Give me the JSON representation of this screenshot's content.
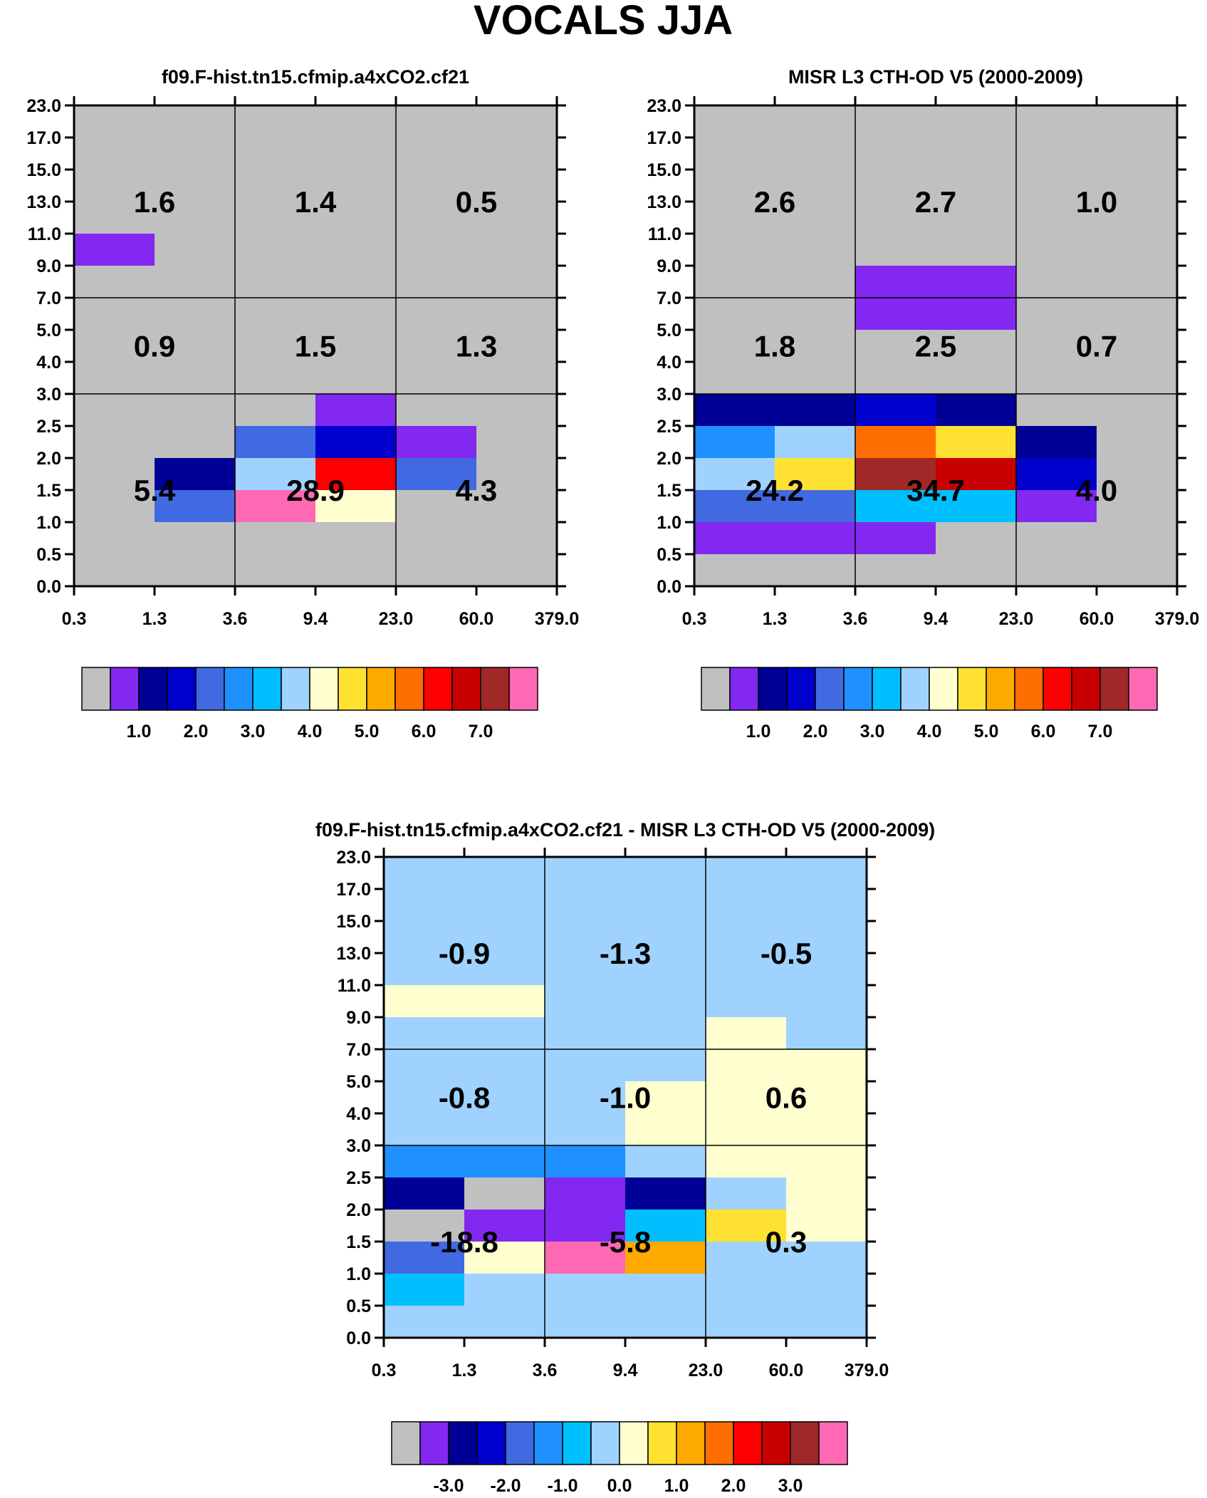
{
  "figure": {
    "title": "VOCALS JJA"
  },
  "palette": {
    "colors": [
      "#c0c0c0",
      "#8228f0",
      "#000096",
      "#0000cd",
      "#4169e1",
      "#1e90ff",
      "#00bfff",
      "#a0d2ff",
      "#ffffd0",
      "#ffe132",
      "#ffaa00",
      "#ff6e00",
      "#ff0000",
      "#c80000",
      "#a02828",
      "#ff69b4"
    ],
    "ratio_labels": [
      "1.0",
      "2.0",
      "3.0",
      "4.0",
      "5.0",
      "6.0",
      "7.0"
    ],
    "diff_labels": [
      "-3.0",
      "-2.0",
      "-1.0",
      "0.0",
      "1.0",
      "2.0",
      "3.0"
    ]
  },
  "chart_data": [
    {
      "type": "heatmap",
      "id": "model",
      "title": "f09.F-hist.tn15.cfmip.a4xCO2.cf21",
      "x_ticks": [
        "0.3",
        "1.3",
        "3.6",
        "9.4",
        "23.0",
        "60.0",
        "379.0"
      ],
      "y_ticks": [
        "0.0",
        "0.5",
        "1.0",
        "1.5",
        "2.0",
        "2.5",
        "3.0",
        "4.0",
        "5.0",
        "7.0",
        "9.0",
        "11.0",
        "13.0",
        "15.0",
        "17.0",
        "23.0"
      ],
      "colorbar": "ratio",
      "default_color_index": 0,
      "cells": [
        {
          "r": 10,
          "c": 0,
          "k": 1
        },
        {
          "r": 5,
          "c": 3,
          "k": 1
        },
        {
          "r": 4,
          "c": 2,
          "k": 4
        },
        {
          "r": 4,
          "c": 3,
          "k": 3
        },
        {
          "r": 4,
          "c": 4,
          "k": 1
        },
        {
          "r": 3,
          "c": 1,
          "k": 2
        },
        {
          "r": 3,
          "c": 2,
          "k": 7
        },
        {
          "r": 3,
          "c": 3,
          "k": 12
        },
        {
          "r": 3,
          "c": 4,
          "k": 4
        },
        {
          "r": 2,
          "c": 1,
          "k": 4
        },
        {
          "r": 2,
          "c": 2,
          "k": 15
        },
        {
          "r": 2,
          "c": 3,
          "k": 8
        }
      ],
      "region_values": [
        {
          "label": "1.6",
          "r0": 9,
          "r1": 15,
          "c0": 0,
          "c1": 2
        },
        {
          "label": "1.4",
          "r0": 9,
          "r1": 15,
          "c0": 2,
          "c1": 4
        },
        {
          "label": "0.5",
          "r0": 9,
          "r1": 15,
          "c0": 4,
          "c1": 6
        },
        {
          "label": "0.9",
          "r0": 6,
          "r1": 9,
          "c0": 0,
          "c1": 2
        },
        {
          "label": "1.5",
          "r0": 6,
          "r1": 9,
          "c0": 2,
          "c1": 4
        },
        {
          "label": "1.3",
          "r0": 6,
          "r1": 9,
          "c0": 4,
          "c1": 6
        },
        {
          "label": "5.4",
          "r0": 0,
          "r1": 6,
          "c0": 0,
          "c1": 2
        },
        {
          "label": "28.9",
          "r0": 0,
          "r1": 6,
          "c0": 2,
          "c1": 4
        },
        {
          "label": "4.3",
          "r0": 0,
          "r1": 6,
          "c0": 4,
          "c1": 6
        }
      ]
    },
    {
      "type": "heatmap",
      "id": "obs",
      "title": "MISR L3 CTH-OD V5 (2000-2009)",
      "x_ticks": [
        "0.3",
        "1.3",
        "3.6",
        "9.4",
        "23.0",
        "60.0",
        "379.0"
      ],
      "y_ticks": [
        "0.0",
        "0.5",
        "1.0",
        "1.5",
        "2.0",
        "2.5",
        "3.0",
        "4.0",
        "5.0",
        "7.0",
        "9.0",
        "11.0",
        "13.0",
        "15.0",
        "17.0",
        "23.0"
      ],
      "colorbar": "ratio",
      "default_color_index": 0,
      "cells": [
        {
          "r": 8,
          "c": 2,
          "k": 1
        },
        {
          "r": 8,
          "c": 3,
          "k": 1
        },
        {
          "r": 9,
          "c": 2,
          "k": 1
        },
        {
          "r": 9,
          "c": 3,
          "k": 1
        },
        {
          "r": 5,
          "c": 0,
          "k": 2
        },
        {
          "r": 5,
          "c": 1,
          "k": 2
        },
        {
          "r": 5,
          "c": 2,
          "k": 3
        },
        {
          "r": 5,
          "c": 3,
          "k": 2
        },
        {
          "r": 4,
          "c": 0,
          "k": 5
        },
        {
          "r": 4,
          "c": 1,
          "k": 7
        },
        {
          "r": 4,
          "c": 2,
          "k": 11
        },
        {
          "r": 4,
          "c": 3,
          "k": 9
        },
        {
          "r": 4,
          "c": 4,
          "k": 2
        },
        {
          "r": 3,
          "c": 0,
          "k": 7
        },
        {
          "r": 3,
          "c": 1,
          "k": 9
        },
        {
          "r": 3,
          "c": 2,
          "k": 14
        },
        {
          "r": 3,
          "c": 3,
          "k": 13
        },
        {
          "r": 3,
          "c": 4,
          "k": 3
        },
        {
          "r": 2,
          "c": 0,
          "k": 4
        },
        {
          "r": 2,
          "c": 1,
          "k": 4
        },
        {
          "r": 2,
          "c": 2,
          "k": 6
        },
        {
          "r": 2,
          "c": 3,
          "k": 6
        },
        {
          "r": 2,
          "c": 4,
          "k": 1
        },
        {
          "r": 1,
          "c": 0,
          "k": 1
        },
        {
          "r": 1,
          "c": 1,
          "k": 1
        },
        {
          "r": 1,
          "c": 2,
          "k": 1
        }
      ],
      "region_values": [
        {
          "label": "2.6",
          "r0": 9,
          "r1": 15,
          "c0": 0,
          "c1": 2
        },
        {
          "label": "2.7",
          "r0": 9,
          "r1": 15,
          "c0": 2,
          "c1": 4
        },
        {
          "label": "1.0",
          "r0": 9,
          "r1": 15,
          "c0": 4,
          "c1": 6
        },
        {
          "label": "1.8",
          "r0": 6,
          "r1": 9,
          "c0": 0,
          "c1": 2
        },
        {
          "label": "2.5",
          "r0": 6,
          "r1": 9,
          "c0": 2,
          "c1": 4
        },
        {
          "label": "0.7",
          "r0": 6,
          "r1": 9,
          "c0": 4,
          "c1": 6
        },
        {
          "label": "24.2",
          "r0": 0,
          "r1": 6,
          "c0": 0,
          "c1": 2
        },
        {
          "label": "34.7",
          "r0": 0,
          "r1": 6,
          "c0": 2,
          "c1": 4
        },
        {
          "label": "4.0",
          "r0": 0,
          "r1": 6,
          "c0": 4,
          "c1": 6
        }
      ]
    },
    {
      "type": "heatmap",
      "id": "diff",
      "title": "f09.F-hist.tn15.cfmip.a4xCO2.cf21 - MISR L3 CTH-OD V5 (2000-2009)",
      "x_ticks": [
        "0.3",
        "1.3",
        "3.6",
        "9.4",
        "23.0",
        "60.0",
        "379.0"
      ],
      "y_ticks": [
        "0.0",
        "0.5",
        "1.0",
        "1.5",
        "2.0",
        "2.5",
        "3.0",
        "4.0",
        "5.0",
        "7.0",
        "9.0",
        "11.0",
        "13.0",
        "15.0",
        "17.0",
        "23.0"
      ],
      "colorbar": "diff",
      "default_color_index": 7,
      "cells": [
        {
          "r": 10,
          "c": 0,
          "k": 8
        },
        {
          "r": 10,
          "c": 1,
          "k": 8
        },
        {
          "r": 9,
          "c": 4,
          "k": 8
        },
        {
          "r": 8,
          "c": 4,
          "k": 8
        },
        {
          "r": 8,
          "c": 5,
          "k": 8
        },
        {
          "r": 7,
          "c": 3,
          "k": 8
        },
        {
          "r": 7,
          "c": 4,
          "k": 8
        },
        {
          "r": 7,
          "c": 5,
          "k": 8
        },
        {
          "r": 6,
          "c": 3,
          "k": 8
        },
        {
          "r": 6,
          "c": 4,
          "k": 8
        },
        {
          "r": 6,
          "c": 5,
          "k": 8
        },
        {
          "r": 5,
          "c": 0,
          "k": 5
        },
        {
          "r": 5,
          "c": 1,
          "k": 5
        },
        {
          "r": 5,
          "c": 2,
          "k": 5
        },
        {
          "r": 5,
          "c": 4,
          "k": 8
        },
        {
          "r": 5,
          "c": 5,
          "k": 8
        },
        {
          "r": 4,
          "c": 0,
          "k": 2
        },
        {
          "r": 4,
          "c": 1,
          "k": 0
        },
        {
          "r": 4,
          "c": 2,
          "k": 1
        },
        {
          "r": 4,
          "c": 3,
          "k": 2
        },
        {
          "r": 4,
          "c": 5,
          "k": 8
        },
        {
          "r": 3,
          "c": 0,
          "k": 0
        },
        {
          "r": 3,
          "c": 1,
          "k": 1
        },
        {
          "r": 3,
          "c": 2,
          "k": 1
        },
        {
          "r": 3,
          "c": 3,
          "k": 6
        },
        {
          "r": 3,
          "c": 4,
          "k": 9
        },
        {
          "r": 3,
          "c": 5,
          "k": 8
        },
        {
          "r": 2,
          "c": 0,
          "k": 4
        },
        {
          "r": 2,
          "c": 1,
          "k": 8
        },
        {
          "r": 2,
          "c": 2,
          "k": 15
        },
        {
          "r": 2,
          "c": 3,
          "k": 10
        },
        {
          "r": 1,
          "c": 0,
          "k": 6
        }
      ],
      "region_values": [
        {
          "label": "-0.9",
          "r0": 9,
          "r1": 15,
          "c0": 0,
          "c1": 2
        },
        {
          "label": "-1.3",
          "r0": 9,
          "r1": 15,
          "c0": 2,
          "c1": 4
        },
        {
          "label": "-0.5",
          "r0": 9,
          "r1": 15,
          "c0": 4,
          "c1": 6
        },
        {
          "label": "-0.8",
          "r0": 6,
          "r1": 9,
          "c0": 0,
          "c1": 2
        },
        {
          "label": "-1.0",
          "r0": 6,
          "r1": 9,
          "c0": 2,
          "c1": 4
        },
        {
          "label": "0.6",
          "r0": 6,
          "r1": 9,
          "c0": 4,
          "c1": 6
        },
        {
          "label": "-18.8",
          "r0": 0,
          "r1": 6,
          "c0": 0,
          "c1": 2
        },
        {
          "label": "-5.8",
          "r0": 0,
          "r1": 6,
          "c0": 2,
          "c1": 4
        },
        {
          "label": "0.3",
          "r0": 0,
          "r1": 6,
          "c0": 4,
          "c1": 6
        }
      ]
    }
  ]
}
